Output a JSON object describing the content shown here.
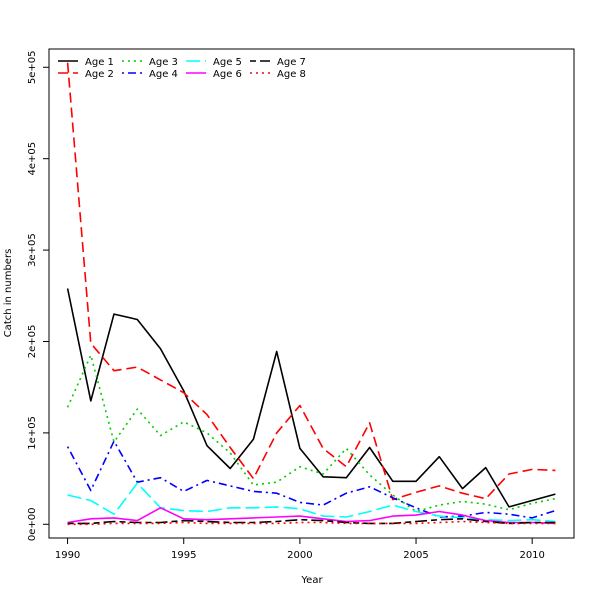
{
  "chart_data": {
    "type": "line",
    "xlabel": "Year",
    "ylabel": "Catch in numbers",
    "xlim": [
      1989.2,
      2011.8
    ],
    "ylim": [
      -15000,
      520000
    ],
    "x_ticks": [
      1990,
      1995,
      2000,
      2005,
      2010
    ],
    "x_tick_labels": [
      "1990",
      "1995",
      "2000",
      "2005",
      "2010"
    ],
    "y_ticks": [
      0,
      100000,
      200000,
      300000,
      400000,
      500000
    ],
    "y_tick_labels": [
      "0e+00",
      "1e+05",
      "2e+05",
      "3e+05",
      "4e+05",
      "5e+05"
    ],
    "legend_position": "top-left",
    "x": [
      1990,
      1991,
      1992,
      1993,
      1994,
      1995,
      1996,
      1997,
      1998,
      1999,
      2000,
      2001,
      2002,
      2003,
      2004,
      2005,
      2006,
      2007,
      2008,
      2009,
      2010,
      2011
    ],
    "series": [
      {
        "name": "Age 1",
        "color": "#000000",
        "dash": "solid",
        "values": [
          258000,
          135000,
          230000,
          224000,
          192000,
          146000,
          86000,
          61000,
          93000,
          189000,
          83000,
          52000,
          51000,
          84000,
          47000,
          47000,
          74000,
          39000,
          62000,
          19000,
          26000,
          33000
        ]
      },
      {
        "name": "Age 2",
        "color": "#ff0000",
        "dash": "dashed",
        "values": [
          505000,
          198000,
          168000,
          172000,
          158000,
          144000,
          120000,
          84000,
          50000,
          100000,
          130000,
          83000,
          63000,
          111000,
          27000,
          35000,
          42000,
          34000,
          28000,
          55000,
          60000,
          59000
        ]
      },
      {
        "name": "Age 3",
        "color": "#00cd00",
        "dash": "dotted",
        "values": [
          128000,
          185000,
          90000,
          126000,
          97000,
          112000,
          100000,
          78000,
          43000,
          46000,
          63000,
          55000,
          83000,
          54000,
          32000,
          14000,
          21000,
          25000,
          22000,
          16000,
          23000,
          28000
        ]
      },
      {
        "name": "Age 4",
        "color": "#0000ff",
        "dash": "dotdash",
        "values": [
          85000,
          37000,
          91000,
          46000,
          51000,
          36000,
          48000,
          42000,
          36000,
          34000,
          24000,
          21000,
          34000,
          41000,
          29000,
          18000,
          8000,
          9000,
          13000,
          11000,
          7000,
          15000
        ]
      },
      {
        "name": "Age 5",
        "color": "#00ffff",
        "dash": "longdash",
        "values": [
          32000,
          26000,
          11000,
          45000,
          18000,
          15000,
          14000,
          18000,
          18000,
          19000,
          17000,
          9000,
          8000,
          14000,
          21000,
          14000,
          9000,
          7000,
          5000,
          4000,
          5000,
          3000
        ]
      },
      {
        "name": "Age 6",
        "color": "#ff00ff",
        "dash": "solid",
        "values": [
          2000,
          6000,
          7000,
          4000,
          18000,
          6000,
          5000,
          6000,
          7000,
          8000,
          9000,
          6000,
          3000,
          4000,
          9000,
          10000,
          14000,
          10000,
          4000,
          2000,
          2000,
          1000
        ]
      },
      {
        "name": "Age 7",
        "color": "#000000",
        "dash": "twodash",
        "values": [
          1000,
          1000,
          3000,
          2000,
          2000,
          4000,
          3000,
          2000,
          2000,
          3000,
          5000,
          4000,
          2000,
          1000,
          1000,
          3000,
          5000,
          6000,
          3000,
          1000,
          2000,
          2000
        ]
      },
      {
        "name": "Age 8",
        "color": "#ff0000",
        "dash": "dotted",
        "values": [
          0,
          0,
          1000,
          1000,
          1000,
          2000,
          1000,
          1000,
          1000,
          1000,
          2000,
          2000,
          1000,
          1000,
          1000,
          1000,
          2000,
          3000,
          2000,
          1000,
          1000,
          1000
        ]
      }
    ]
  }
}
